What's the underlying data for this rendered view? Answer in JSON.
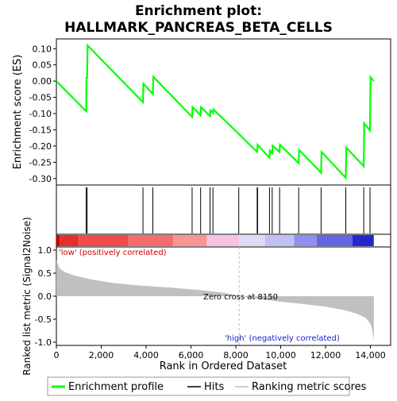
{
  "chart_data": {
    "type": "line",
    "title_line1": "Enrichment plot:",
    "title_line2": "HALLMARK_PANCREAS_BETA_CELLS",
    "es_panel": {
      "ylabel": "Enrichment score (ES)",
      "ylim": [
        -0.32,
        0.13
      ],
      "yticks": [
        0.1,
        0.05,
        0.0,
        -0.05,
        -0.1,
        -0.15,
        -0.2,
        -0.25,
        -0.3
      ],
      "ytick_labels": [
        "0.10",
        "0.05",
        "0.00",
        "-0.05",
        "-0.10",
        "-0.15",
        "-0.20",
        "-0.25",
        "-0.30"
      ],
      "line_color": "#00ff00",
      "series": {
        "name": "Enrichment profile",
        "points": [
          [
            0,
            0.0
          ],
          [
            1330,
            -0.093
          ],
          [
            1340,
            0.012
          ],
          [
            1370,
            0.008
          ],
          [
            1390,
            0.11
          ],
          [
            3860,
            -0.065
          ],
          [
            3880,
            -0.008
          ],
          [
            4300,
            -0.04
          ],
          [
            4320,
            0.013
          ],
          [
            6050,
            -0.11
          ],
          [
            6070,
            -0.08
          ],
          [
            6430,
            -0.105
          ],
          [
            6450,
            -0.08
          ],
          [
            6850,
            -0.108
          ],
          [
            6870,
            -0.09
          ],
          [
            6980,
            -0.098
          ],
          [
            7000,
            -0.087
          ],
          [
            8950,
            -0.218
          ],
          [
            8970,
            -0.196
          ],
          [
            9500,
            -0.236
          ],
          [
            9520,
            -0.214
          ],
          [
            9620,
            -0.222
          ],
          [
            9640,
            -0.199
          ],
          [
            9950,
            -0.218
          ],
          [
            9970,
            -0.196
          ],
          [
            10800,
            -0.253
          ],
          [
            10820,
            -0.212
          ],
          [
            11800,
            -0.282
          ],
          [
            11820,
            -0.218
          ],
          [
            12900,
            -0.298
          ],
          [
            12920,
            -0.205
          ],
          [
            13700,
            -0.262
          ],
          [
            13720,
            -0.13
          ],
          [
            13980,
            -0.152
          ],
          [
            14000,
            0.012
          ],
          [
            14150,
            0.0
          ]
        ]
      }
    },
    "hits": {
      "name": "Hits",
      "positions": [
        1330,
        1370,
        3860,
        4300,
        6050,
        6430,
        6850,
        6980,
        8130,
        8950,
        8970,
        9500,
        9620,
        9950,
        10800,
        11800,
        12900,
        13700,
        13980
      ]
    },
    "metric_panel": {
      "ylabel": "Ranked list metric (Signal2Noise)",
      "ylim": [
        -1.07,
        1.07
      ],
      "yticks": [
        1.0,
        0.5,
        0.0,
        -0.5,
        -1.0
      ],
      "ytick_labels": [
        "1.0",
        "0.5",
        "0.0",
        "-0.5",
        "-1.0"
      ],
      "series_name": "Ranking metric scores",
      "fill_color": "#c0c0c0",
      "profile": [
        [
          0,
          0.78
        ],
        [
          150,
          0.6
        ],
        [
          400,
          0.52
        ],
        [
          800,
          0.45
        ],
        [
          1500,
          0.37
        ],
        [
          2500,
          0.29
        ],
        [
          3500,
          0.24
        ],
        [
          5000,
          0.19
        ],
        [
          6500,
          0.13
        ],
        [
          7500,
          0.07
        ],
        [
          8150,
          0.0
        ],
        [
          9000,
          -0.06
        ],
        [
          10000,
          -0.12
        ],
        [
          11000,
          -0.17
        ],
        [
          12000,
          -0.23
        ],
        [
          12800,
          -0.3
        ],
        [
          13400,
          -0.38
        ],
        [
          13800,
          -0.48
        ],
        [
          14000,
          -0.6
        ],
        [
          14100,
          -0.78
        ],
        [
          14150,
          -0.98
        ]
      ],
      "zero_cross_label": "Zero cross at 8150",
      "zero_cross": 8150,
      "low_label": "'low' (positively correlated)",
      "high_label": "'high' (negatively correlated)"
    },
    "color_bar": {
      "segments": [
        [
          "#cc0000",
          0,
          150
        ],
        [
          "#e52e2e",
          150,
          1000
        ],
        [
          "#f24a4a",
          1000,
          3200
        ],
        [
          "#f56b6b",
          3200,
          5200
        ],
        [
          "#f89494",
          5200,
          6700
        ],
        [
          "#f7c1e0",
          6700,
          8150
        ],
        [
          "#dcdcf7",
          8150,
          9300
        ],
        [
          "#c0c0f2",
          9300,
          10600
        ],
        [
          "#8f8fee",
          10600,
          11600
        ],
        [
          "#6464e4",
          11600,
          13200
        ],
        [
          "#2626d0",
          13200,
          14150
        ]
      ]
    },
    "x_axis": {
      "label": "Rank in Ordered Dataset",
      "xlim": [
        0,
        14900
      ],
      "ticks": [
        0,
        2000,
        4000,
        6000,
        8000,
        10000,
        12000,
        14000
      ],
      "tick_labels": [
        "0",
        "2,000",
        "4,000",
        "6,000",
        "8,000",
        "10,000",
        "12,000",
        "14,000"
      ]
    },
    "legend": {
      "placement": "bottom",
      "items": [
        {
          "label": "Enrichment profile",
          "color": "#00ff00"
        },
        {
          "label": "Hits",
          "color": "#000000"
        },
        {
          "label": "Ranking metric scores",
          "color": "#c0c0c0"
        }
      ]
    }
  }
}
